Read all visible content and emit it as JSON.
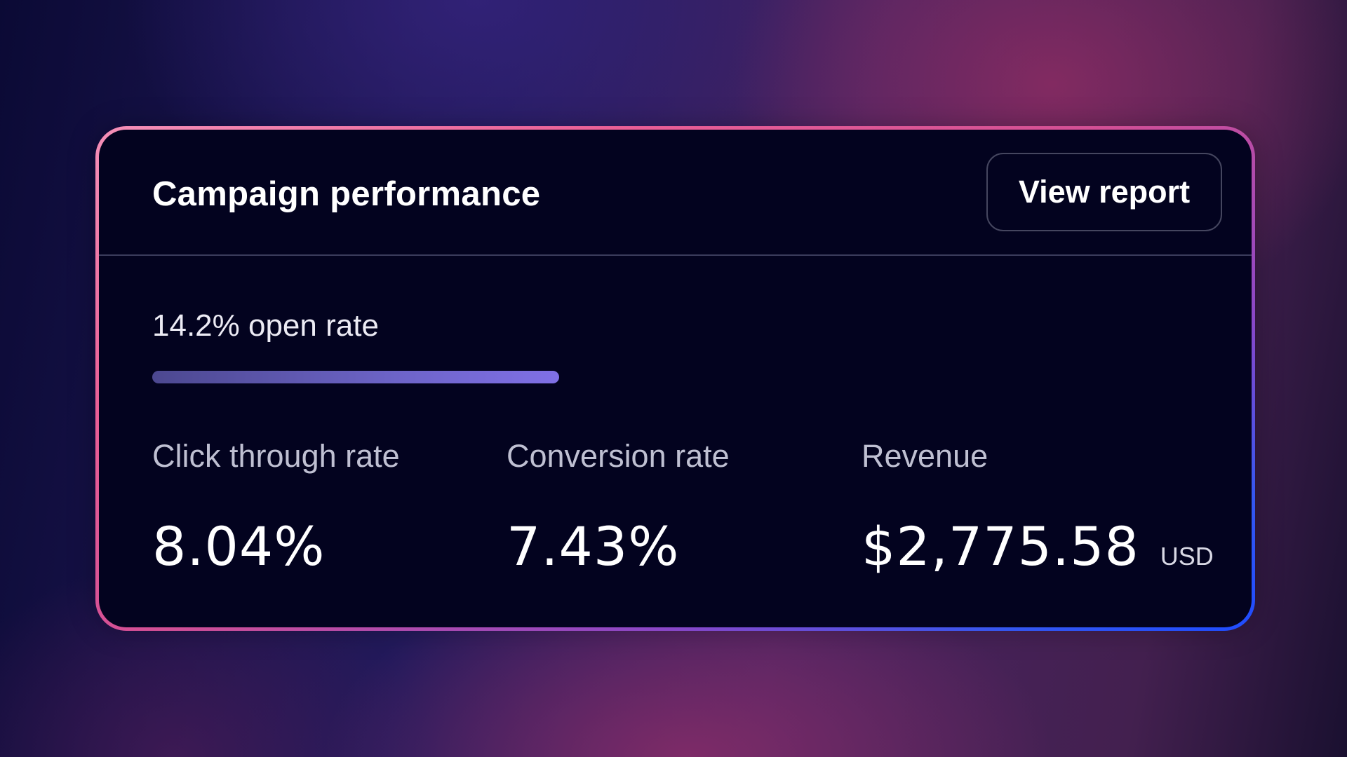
{
  "card": {
    "title": "Campaign performance",
    "view_report_label": "View report",
    "open_rate": {
      "label": "14.2% open rate",
      "progress_percent": 14.2
    },
    "metrics": [
      {
        "label": "Click through rate",
        "value": "8.04%",
        "unit": ""
      },
      {
        "label": "Conversion rate",
        "value": "7.43%",
        "unit": ""
      },
      {
        "label": "Revenue",
        "value": "$2,775.58",
        "unit": "USD"
      }
    ]
  },
  "colors": {
    "card_background": "#03031f",
    "border_gradient_start": "#f590b8",
    "border_gradient_end": "#1f4cff",
    "progress_fill": "#8070e6"
  }
}
